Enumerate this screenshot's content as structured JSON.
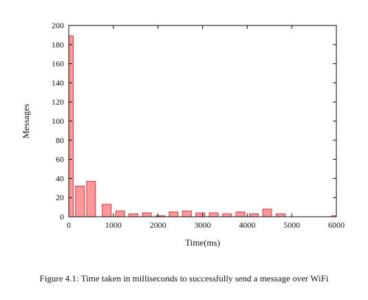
{
  "chart_data": {
    "type": "bar",
    "xlabel": "Time(ms)",
    "ylabel": "Messages",
    "xlim": [
      0,
      6000
    ],
    "ylim": [
      0,
      200
    ],
    "xticks": [
      0,
      1000,
      2000,
      3000,
      4000,
      5000,
      6000
    ],
    "yticks": [
      0,
      20,
      40,
      60,
      80,
      100,
      120,
      140,
      160,
      180,
      200
    ],
    "bin_width": 200,
    "x": [
      0,
      250,
      500,
      850,
      1150,
      1450,
      1750,
      2050,
      2350,
      2650,
      2950,
      3250,
      3550,
      3850,
      4150,
      4450,
      4750,
      6000
    ],
    "values": [
      189,
      32,
      37,
      13,
      6,
      3,
      4,
      1,
      5,
      6,
      4,
      4,
      3,
      5,
      3,
      8,
      3,
      1
    ],
    "bar_fill": "#ff9999",
    "bar_stroke": "#cc3344",
    "grid": false
  },
  "caption": "Figure 4.1: Time taken in milliseconds to successfully send a message over WiFi"
}
